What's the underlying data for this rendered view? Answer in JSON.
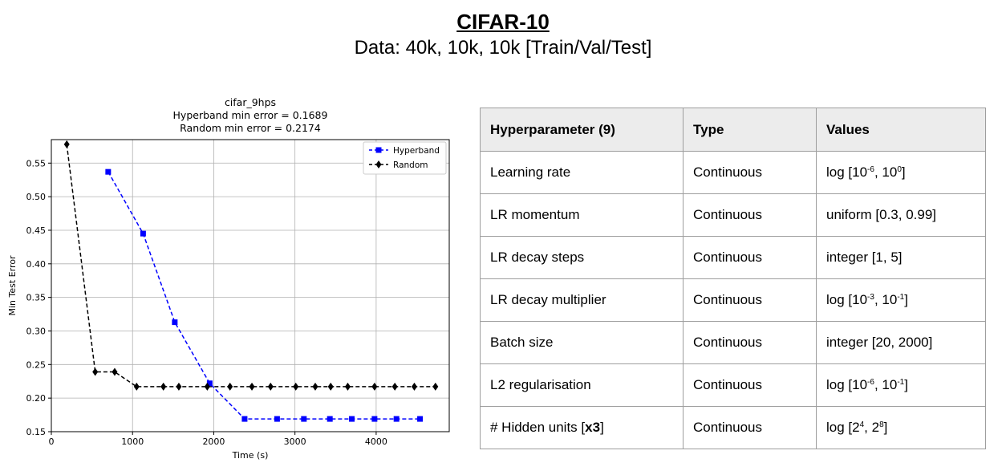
{
  "slide": {
    "title": "CIFAR-10",
    "subtitle": "Data: 40k, 10k, 10k [Train/Val/Test]"
  },
  "chart_data": {
    "type": "line",
    "title": "cifar_9hps",
    "subtitle_lines": [
      "Hyperband min error = 0.1689",
      "Random min error = 0.2174"
    ],
    "xlabel": "Time (s)",
    "ylabel": "Min Test Error",
    "xlim": [
      0,
      4900
    ],
    "ylim": [
      0.15,
      0.585
    ],
    "xticks": [
      0,
      1000,
      2000,
      3000,
      4000
    ],
    "xtick_labels": [
      "0",
      "1000",
      "2000",
      "3000",
      "4000"
    ],
    "yticks": [
      0.15,
      0.2,
      0.25,
      0.3,
      0.35,
      0.4,
      0.45,
      0.5,
      0.55
    ],
    "ytick_labels": [
      "0.15",
      "0.20",
      "0.25",
      "0.30",
      "0.35",
      "0.40",
      "0.45",
      "0.50",
      "0.55"
    ],
    "grid": true,
    "legend_position": "top-right",
    "series": [
      {
        "name": "Hyperband",
        "color": "#0000ff",
        "marker": "square",
        "x": [
          700,
          1130,
          1520,
          1950,
          2380,
          2780,
          3110,
          3430,
          3700,
          3980,
          4250,
          4540
        ],
        "y": [
          0.537,
          0.445,
          0.313,
          0.222,
          0.169,
          0.169,
          0.169,
          0.169,
          0.169,
          0.169,
          0.169,
          0.169
        ]
      },
      {
        "name": "Random",
        "color": "#000000",
        "marker": "diamond",
        "x": [
          190,
          540,
          780,
          1050,
          1380,
          1570,
          1920,
          2200,
          2470,
          2700,
          3010,
          3250,
          3440,
          3650,
          3980,
          4230,
          4470,
          4730
        ],
        "y": [
          0.578,
          0.239,
          0.239,
          0.217,
          0.217,
          0.217,
          0.217,
          0.217,
          0.217,
          0.217,
          0.217,
          0.217,
          0.217,
          0.217,
          0.217,
          0.217,
          0.217,
          0.217
        ]
      }
    ]
  },
  "table": {
    "headers": [
      "Hyperparameter (9)",
      "Type",
      "Values"
    ],
    "rows": [
      {
        "name": "Learning rate",
        "type": "Continuous",
        "v_pre": "log [10",
        "v_sup1": "-6",
        "v_mid": ", 10",
        "v_sup2": "0",
        "v_post": "]"
      },
      {
        "name": "LR momentum",
        "type": "Continuous",
        "v_pre": "uniform [0.3, 0.99]"
      },
      {
        "name": "LR decay steps",
        "type": "Continuous",
        "v_pre": "integer [1, 5]"
      },
      {
        "name": "LR decay multiplier",
        "type": "Continuous",
        "v_pre": "log [10",
        "v_sup1": "-3",
        "v_mid": ", 10",
        "v_sup2": "-1",
        "v_post": "]"
      },
      {
        "name": "Batch size",
        "type": "Continuous",
        "v_pre": "integer [20, 2000]"
      },
      {
        "name": "L2 regularisation",
        "type": "Continuous",
        "v_pre": "log [10",
        "v_sup1": "-6",
        "v_mid": ", 10",
        "v_sup2": "-1",
        "v_post": "]"
      },
      {
        "name": "# Hidden units [",
        "name_bold": "x3",
        "name_post": "]",
        "type": "Continuous",
        "v_pre": "log [2",
        "v_sup1": "4",
        "v_mid": ", 2",
        "v_sup2": "8",
        "v_post": "]"
      }
    ]
  }
}
